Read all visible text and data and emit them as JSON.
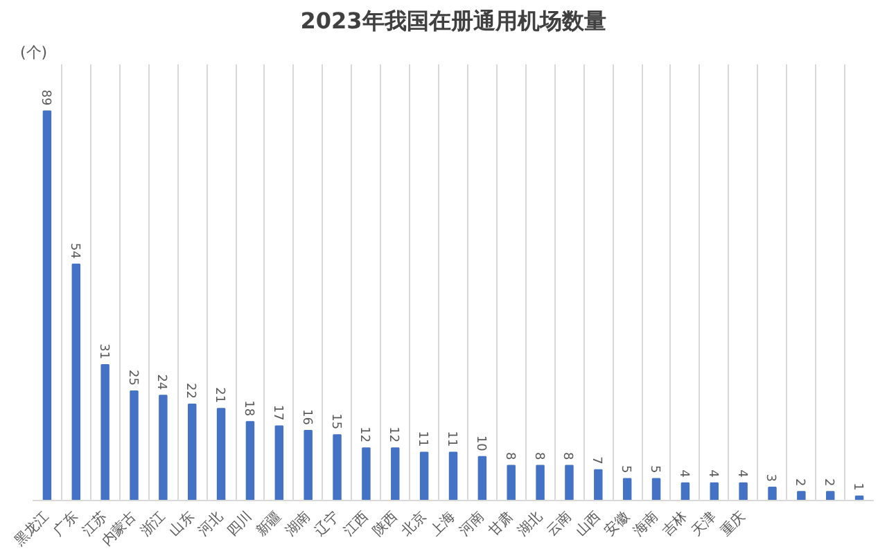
{
  "chart_data": {
    "type": "bar",
    "title": "2023年我国在册通用机场数量",
    "ylabel": "(个)",
    "categories": [
      "黑龙江",
      "广东",
      "江苏",
      "内蒙古",
      "浙江",
      "山东",
      "河北",
      "四川",
      "新疆",
      "湖南",
      "辽宁",
      "江西",
      "陕西",
      "北京",
      "上海",
      "河南",
      "甘肃",
      "湖北",
      "云南",
      "山西",
      "安徽",
      "海南",
      "吉林",
      "天津",
      "重庆",
      null,
      null,
      null,
      null
    ],
    "values": [
      89,
      54,
      31,
      25,
      24,
      22,
      21,
      18,
      17,
      16,
      15,
      12,
      12,
      11,
      11,
      10,
      8,
      8,
      8,
      7,
      5,
      5,
      4,
      4,
      4,
      3,
      2,
      2,
      1
    ],
    "color": "#4472c4",
    "data_labels": true,
    "grid": "x",
    "tick_labels": "x"
  }
}
